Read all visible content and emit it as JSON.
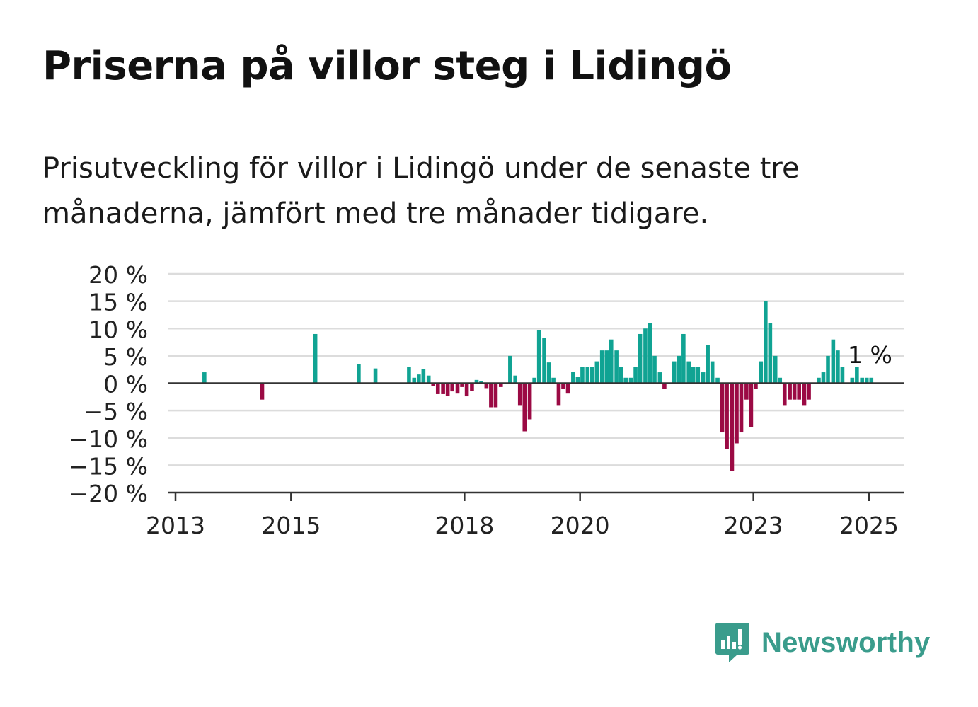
{
  "header": {
    "title": "Priserna på villor steg i Lidingö",
    "subtitle": "Prisutveckling för villor i Lidingö under de senaste tre månaderna, jämfört med tre månader tidigare."
  },
  "brand": {
    "name": "Newsworthy",
    "color": "#3a9c8c"
  },
  "colors": {
    "positive": "#10a393",
    "negative": "#9b0a44",
    "grid": "#dcdcdc",
    "axis": "#333333"
  },
  "chart_data": {
    "type": "bar",
    "ylim": [
      -20,
      20
    ],
    "y_ticks": [
      20,
      15,
      10,
      5,
      0,
      -5,
      -10,
      -15,
      -20
    ],
    "y_tick_labels": [
      "20 %",
      "15 %",
      "10 %",
      "5 %",
      "0 %",
      "−5 %",
      "−10 %",
      "−15 %",
      "−20 %"
    ],
    "x_ticks": [
      2013,
      2015,
      2018,
      2020,
      2023,
      2025
    ],
    "x_tick_labels": [
      "2013",
      "2015",
      "2018",
      "2020",
      "2023",
      "2025"
    ],
    "xlim": [
      2013,
      2025.6
    ],
    "grid": true,
    "annotation": {
      "text": "1 %",
      "x": 2025.0,
      "y": 1
    },
    "x": [
      2013.5,
      2014.5,
      2015.42,
      2016.17,
      2016.46,
      2017.04,
      2017.13,
      2017.21,
      2017.29,
      2017.38,
      2017.46,
      2017.54,
      2017.63,
      2017.71,
      2017.79,
      2017.88,
      2017.96,
      2018.04,
      2018.13,
      2018.21,
      2018.29,
      2018.38,
      2018.46,
      2018.54,
      2018.63,
      2018.79,
      2018.88,
      2018.96,
      2019.04,
      2019.13,
      2019.21,
      2019.29,
      2019.38,
      2019.46,
      2019.54,
      2019.63,
      2019.71,
      2019.79,
      2019.88,
      2019.96,
      2020.04,
      2020.13,
      2020.21,
      2020.29,
      2020.38,
      2020.46,
      2020.54,
      2020.63,
      2020.71,
      2020.79,
      2020.88,
      2020.96,
      2021.04,
      2021.13,
      2021.21,
      2021.29,
      2021.38,
      2021.46,
      2021.63,
      2021.71,
      2021.79,
      2021.88,
      2021.96,
      2022.04,
      2022.13,
      2022.21,
      2022.29,
      2022.38,
      2022.46,
      2022.54,
      2022.63,
      2022.71,
      2022.79,
      2022.88,
      2022.96,
      2023.04,
      2023.13,
      2023.21,
      2023.29,
      2023.38,
      2023.46,
      2023.54,
      2023.63,
      2023.71,
      2023.79,
      2023.88,
      2023.96,
      2024.13,
      2024.21,
      2024.29,
      2024.38,
      2024.46,
      2024.54,
      2024.71,
      2024.79,
      2024.88,
      2024.96,
      2025.04
    ],
    "values": [
      2,
      -3,
      9,
      3.5,
      2.7,
      3,
      1,
      1.6,
      2.6,
      1.4,
      -0.5,
      -2,
      -2,
      -2.3,
      -1.5,
      -1.9,
      -0.7,
      -2.4,
      -1.4,
      0.6,
      0.4,
      -0.9,
      -4.4,
      -4.4,
      -0.7,
      5,
      1.4,
      -4,
      -8.8,
      -6.6,
      1,
      9.7,
      8.3,
      3.8,
      1,
      -4,
      -1,
      -1.9,
      2.1,
      1.1,
      3,
      3,
      3,
      4,
      6,
      6,
      8,
      6,
      3,
      1,
      1,
      3,
      9,
      10,
      11,
      5,
      2,
      -1,
      4,
      5,
      9,
      4,
      3,
      3,
      2,
      7,
      4,
      1,
      -9,
      -12,
      -16,
      -11,
      -9,
      -3,
      -8,
      -1,
      4,
      15,
      11,
      5,
      1,
      -4,
      -3,
      -3,
      -3,
      -4,
      -3,
      1,
      2,
      5,
      8,
      6,
      3,
      1,
      3,
      1,
      1,
      1
    ]
  }
}
